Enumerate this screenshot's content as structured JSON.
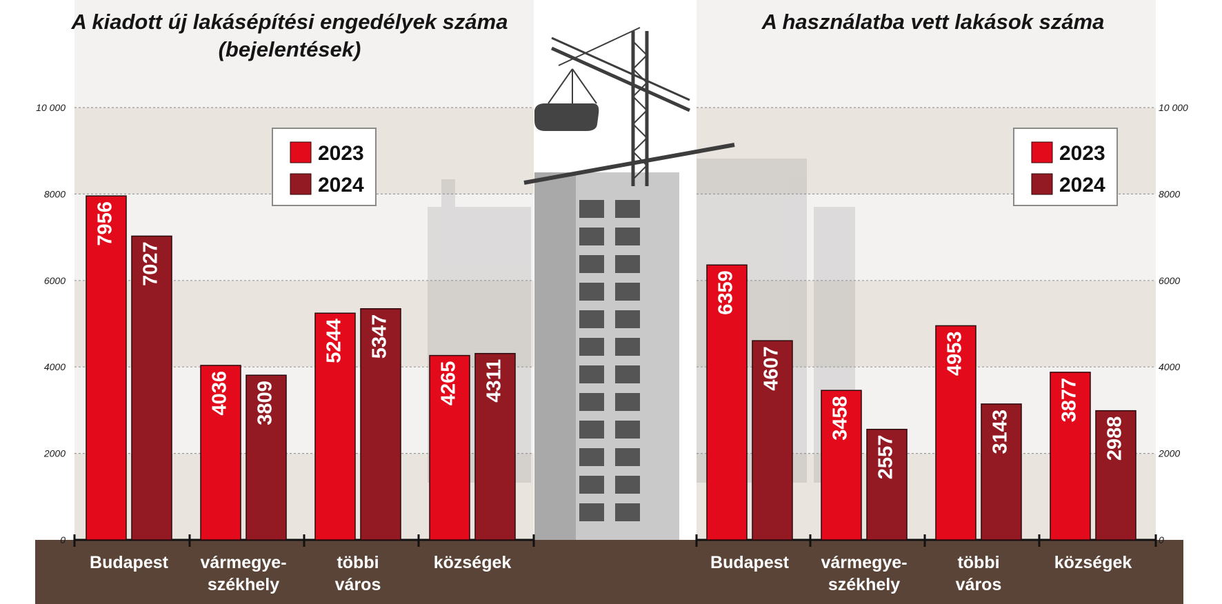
{
  "colors": {
    "series_2023": "#e30b1b",
    "series_2024": "#931a22",
    "ground": "#5a4437",
    "band_dark": "#e9e4de",
    "band_light": "#f4f2f1",
    "gridline": "#9a9a9a"
  },
  "chart_data": [
    {
      "type": "bar",
      "title": "A kiadott új lakásépítési engedélyek száma (bejelentések)",
      "title_lines": [
        "A kiadott új lakásépítési engedélyek száma",
        "(bejelentések)"
      ],
      "categories": [
        "Budapest",
        "vármegye-székhely",
        "többi város",
        "községek"
      ],
      "category_lines": [
        [
          "Budapest"
        ],
        [
          "vármegye-",
          "székhely"
        ],
        [
          "többi",
          "város"
        ],
        [
          "községek"
        ]
      ],
      "series": [
        {
          "name": "2023",
          "values": [
            7956,
            4036,
            5244,
            4265
          ]
        },
        {
          "name": "2024",
          "values": [
            7027,
            3809,
            5347,
            4311
          ]
        }
      ],
      "data_labels": [
        [
          "7956",
          "4036",
          "5244",
          "4265"
        ],
        [
          "7027",
          "3809",
          "5347",
          "4311"
        ]
      ],
      "ylim": [
        0,
        10000
      ],
      "yticks": [
        0,
        2000,
        4000,
        6000,
        8000,
        10000
      ],
      "ytick_labels": [
        "0",
        "2000",
        "4000",
        "6000",
        "8000",
        "10 000"
      ],
      "yaxis_side": "left",
      "grid": true,
      "legend": {
        "position": "top-right",
        "entries": [
          "2023",
          "2024"
        ]
      }
    },
    {
      "type": "bar",
      "title": "A használatba vett lakások száma",
      "title_lines": [
        "A használatba vett lakások száma"
      ],
      "categories": [
        "Budapest",
        "vármegye-székhely",
        "többi város",
        "községek"
      ],
      "category_lines": [
        [
          "Budapest"
        ],
        [
          "vármegye-",
          "székhely"
        ],
        [
          "többi",
          "város"
        ],
        [
          "községek"
        ]
      ],
      "series": [
        {
          "name": "2023",
          "values": [
            6359,
            3458,
            4953,
            3877
          ]
        },
        {
          "name": "2024",
          "values": [
            4607,
            2557,
            3143,
            2988
          ]
        }
      ],
      "data_labels": [
        [
          "6359",
          "3458",
          "4953",
          "3877"
        ],
        [
          "4607",
          "2557",
          "3143",
          "2988"
        ]
      ],
      "ylim": [
        0,
        10000
      ],
      "yticks": [
        0,
        2000,
        4000,
        6000,
        8000,
        10000
      ],
      "ytick_labels": [
        "0",
        "2000",
        "4000",
        "6000",
        "8000",
        "10 000"
      ],
      "yaxis_side": "right",
      "grid": true,
      "legend": {
        "position": "top-right",
        "entries": [
          "2023",
          "2024"
        ]
      }
    }
  ]
}
